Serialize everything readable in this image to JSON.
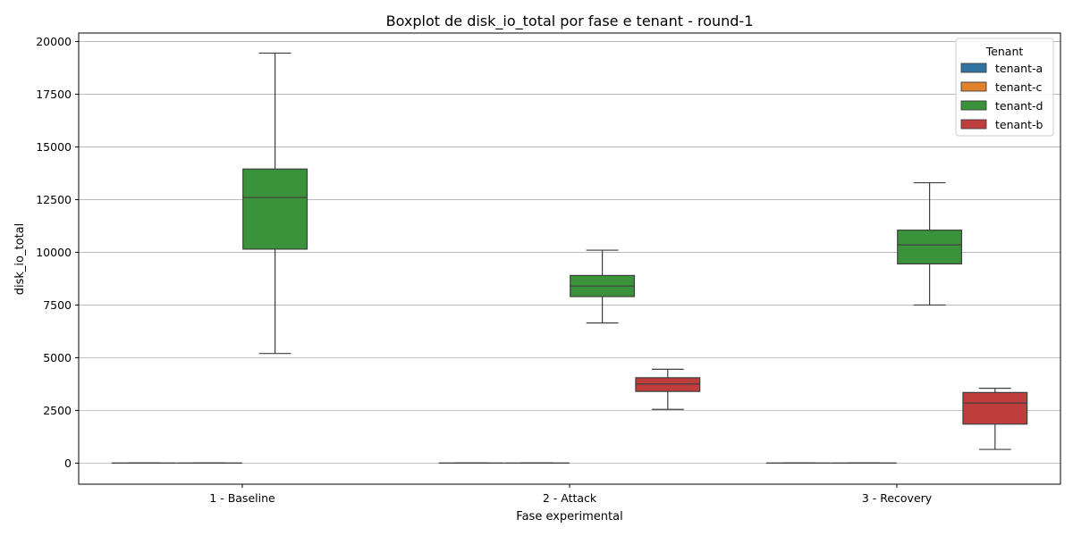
{
  "chart_data": {
    "type": "boxplot",
    "title": "Boxplot de disk_io_total por fase e tenant - round-1",
    "xlabel": "Fase experimental",
    "ylabel": "disk_io_total",
    "categories": [
      "1 - Baseline",
      "2 - Attack",
      "3 - Recovery"
    ],
    "ylim": [
      -1000,
      20400
    ],
    "yticks": [
      0,
      2500,
      5000,
      7500,
      10000,
      12500,
      15000,
      17500,
      20000
    ],
    "grid": "y",
    "legend": {
      "title": "Tenant",
      "placement": "top-right"
    },
    "series": [
      {
        "name": "tenant-a",
        "color": "#3274a1",
        "boxes": [
          {
            "min": 0,
            "q1": 0,
            "median": 0,
            "q3": 0,
            "max": 0
          },
          {
            "min": 0,
            "q1": 0,
            "median": 0,
            "q3": 0,
            "max": 0
          },
          {
            "min": 0,
            "q1": 0,
            "median": 0,
            "q3": 0,
            "max": 0
          }
        ]
      },
      {
        "name": "tenant-c",
        "color": "#e1812c",
        "boxes": [
          {
            "min": 0,
            "q1": 0,
            "median": 0,
            "q3": 0,
            "max": 0
          },
          {
            "min": 0,
            "q1": 0,
            "median": 0,
            "q3": 0,
            "max": 0
          },
          {
            "min": 0,
            "q1": 0,
            "median": 0,
            "q3": 0,
            "max": 0
          }
        ]
      },
      {
        "name": "tenant-d",
        "color": "#3a923a",
        "boxes": [
          {
            "min": 5200,
            "q1": 10150,
            "median": 12600,
            "q3": 13950,
            "max": 19450
          },
          {
            "min": 6650,
            "q1": 7900,
            "median": 8400,
            "q3": 8900,
            "max": 10100
          },
          {
            "min": 7500,
            "q1": 9450,
            "median": 10350,
            "q3": 11050,
            "max": 13300
          }
        ]
      },
      {
        "name": "tenant-b",
        "color": "#c03d3e",
        "boxes": [
          null,
          {
            "min": 2550,
            "q1": 3400,
            "median": 3750,
            "q3": 4050,
            "max": 4450
          },
          {
            "min": 650,
            "q1": 1850,
            "median": 2850,
            "q3": 3350,
            "max": 3550
          }
        ]
      }
    ]
  }
}
